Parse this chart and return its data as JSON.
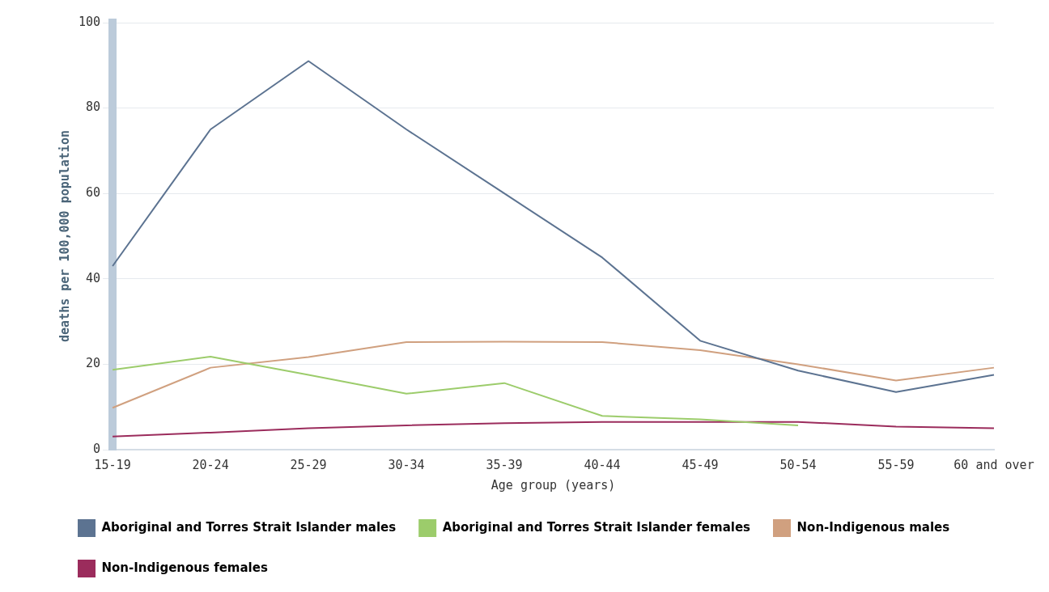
{
  "chart_data": {
    "type": "line",
    "xlabel": "Age group (years)",
    "ylabel": "deaths per 100,000 population",
    "categories": [
      "15-19",
      "20-24",
      "25-29",
      "30-34",
      "35-39",
      "40-44",
      "45-49",
      "50-54",
      "55-59",
      "60 and over"
    ],
    "series": [
      {
        "name": "Aboriginal and Torres Strait Islander males",
        "color": "#5c7391",
        "values": [
          43,
          75,
          91,
          75,
          60,
          45,
          25.5,
          18.5,
          13.5,
          17.5
        ]
      },
      {
        "name": "Aboriginal and Torres Strait Islander females",
        "color": "#9ccc6b",
        "values": [
          18.7,
          21.8,
          17.5,
          13.1,
          15.6,
          7.9,
          7.1,
          5.7,
          null,
          null
        ]
      },
      {
        "name": "Non-Indigenous males",
        "color": "#d0a07f",
        "values": [
          9.8,
          19.2,
          21.7,
          25.2,
          25.3,
          25.2,
          23.3,
          20,
          16.2,
          19.2
        ]
      },
      {
        "name": "Non-Indigenous females",
        "color": "#9b2c5c",
        "values": [
          3.1,
          4,
          5,
          5.7,
          6.2,
          6.5,
          6.5,
          6.5,
          5.4,
          5
        ]
      }
    ],
    "ylim": [
      0,
      100
    ],
    "yticks": [
      0,
      20,
      40,
      60,
      80,
      100
    ],
    "grid": "y",
    "legend": "bottom",
    "marker": "none",
    "line_style": "solid"
  }
}
